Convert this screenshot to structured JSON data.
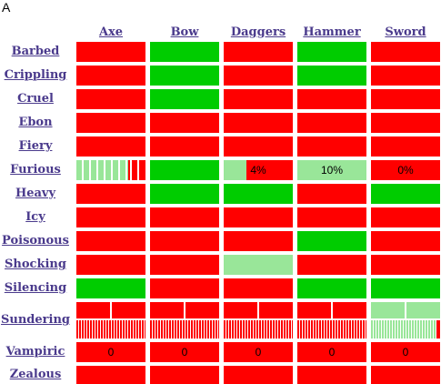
{
  "corner_label": "A",
  "columns": [
    "Axe",
    "Bow",
    "Daggers",
    "Hammer",
    "Sword"
  ],
  "colors": {
    "red": "#ff0000",
    "green": "#00cc00",
    "light_green": "#99e699",
    "link": "#4a3a8c"
  },
  "rows": [
    {
      "label": "Barbed",
      "cells": [
        {
          "s": "red"
        },
        {
          "s": "green"
        },
        {
          "s": "red"
        },
        {
          "s": "green"
        },
        {
          "s": "red"
        }
      ]
    },
    {
      "label": "Crippling",
      "cells": [
        {
          "s": "red"
        },
        {
          "s": "green"
        },
        {
          "s": "red"
        },
        {
          "s": "green"
        },
        {
          "s": "red"
        }
      ]
    },
    {
      "label": "Cruel",
      "cells": [
        {
          "s": "red"
        },
        {
          "s": "green"
        },
        {
          "s": "red"
        },
        {
          "s": "red"
        },
        {
          "s": "red"
        }
      ]
    },
    {
      "label": "Ebon",
      "cells": [
        {
          "s": "red"
        },
        {
          "s": "red"
        },
        {
          "s": "red"
        },
        {
          "s": "red"
        },
        {
          "s": "red"
        }
      ]
    },
    {
      "label": "Fiery",
      "cells": [
        {
          "s": "red"
        },
        {
          "s": "red"
        },
        {
          "s": "red"
        },
        {
          "s": "red"
        },
        {
          "s": "red"
        }
      ]
    },
    {
      "label": "Furious",
      "cells": [
        {
          "s": "ticks",
          "fill": 0.75
        },
        {
          "s": "green"
        },
        {
          "s": "partial",
          "fill": 0.33,
          "text": "4%"
        },
        {
          "s": "light",
          "text": "10%"
        },
        {
          "s": "red",
          "text": "0%"
        }
      ]
    },
    {
      "label": "Heavy",
      "cells": [
        {
          "s": "red"
        },
        {
          "s": "green"
        },
        {
          "s": "green"
        },
        {
          "s": "red"
        },
        {
          "s": "green"
        }
      ]
    },
    {
      "label": "Icy",
      "cells": [
        {
          "s": "red"
        },
        {
          "s": "red"
        },
        {
          "s": "red"
        },
        {
          "s": "red"
        },
        {
          "s": "red"
        }
      ]
    },
    {
      "label": "Poisonous",
      "cells": [
        {
          "s": "red"
        },
        {
          "s": "red"
        },
        {
          "s": "red"
        },
        {
          "s": "green"
        },
        {
          "s": "red"
        }
      ]
    },
    {
      "label": "Shocking",
      "cells": [
        {
          "s": "red"
        },
        {
          "s": "red"
        },
        {
          "s": "light"
        },
        {
          "s": "red"
        },
        {
          "s": "red"
        }
      ]
    },
    {
      "label": "Silencing",
      "cells": [
        {
          "s": "green"
        },
        {
          "s": "red"
        },
        {
          "s": "red"
        },
        {
          "s": "green"
        },
        {
          "s": "green"
        }
      ]
    },
    {
      "label": "Sundering",
      "cells": [
        {
          "s": "sunder",
          "color": "red"
        },
        {
          "s": "sunder",
          "color": "red"
        },
        {
          "s": "sunder",
          "color": "red"
        },
        {
          "s": "sunder",
          "color": "red"
        },
        {
          "s": "sunder",
          "color": "light_green",
          "tail": "red"
        }
      ]
    },
    {
      "label": "Vampiric",
      "cells": [
        {
          "s": "red",
          "text": "0"
        },
        {
          "s": "red",
          "text": "0"
        },
        {
          "s": "red",
          "text": "0"
        },
        {
          "s": "red",
          "text": "0"
        },
        {
          "s": "red",
          "text": "0"
        }
      ]
    },
    {
      "label": "Zealous",
      "cells": [
        {
          "s": "red"
        },
        {
          "s": "red"
        },
        {
          "s": "red"
        },
        {
          "s": "red"
        },
        {
          "s": "red"
        }
      ]
    }
  ]
}
